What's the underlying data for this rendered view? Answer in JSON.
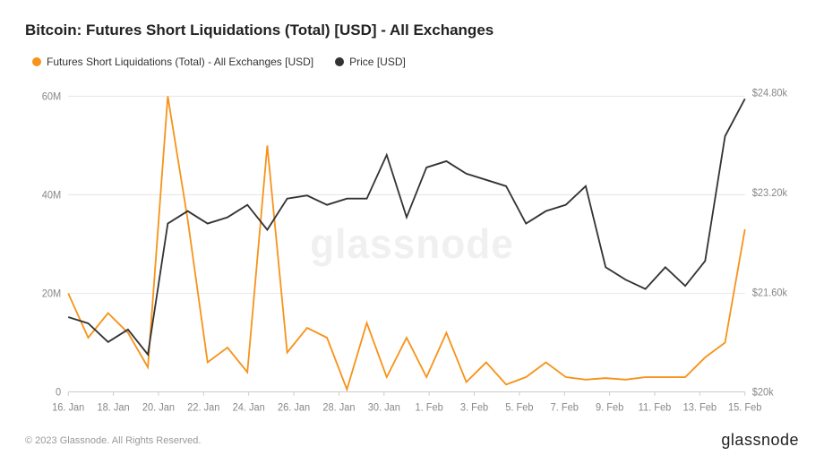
{
  "title": "Bitcoin: Futures Short Liquidations (Total) [USD] - All Exchanges",
  "legend": {
    "series1": {
      "label": "Futures Short Liquidations (Total) - All Exchanges [USD]",
      "color": "#f7931a"
    },
    "series2": {
      "label": "Price [USD]",
      "color": "#333333"
    }
  },
  "watermark": "glassnode",
  "chart": {
    "type": "line-dual-axis",
    "background_color": "#ffffff",
    "grid_color": "#e8e8e8",
    "x_axis": {
      "labels": [
        "16. Jan",
        "18. Jan",
        "20. Jan",
        "22. Jan",
        "24. Jan",
        "26. Jan",
        "28. Jan",
        "30. Jan",
        "1. Feb",
        "3. Feb",
        "5. Feb",
        "7. Feb",
        "9. Feb",
        "11. Feb",
        "13. Feb",
        "15. Feb"
      ],
      "label_color": "#888",
      "label_fontsize": 11
    },
    "y_left": {
      "min": 0,
      "max": 62,
      "ticks": [
        0,
        20,
        40,
        60
      ],
      "tick_labels": [
        "0",
        "20M",
        "40M",
        "60M"
      ],
      "label_color": "#888"
    },
    "y_right": {
      "min": 20,
      "max": 24.9,
      "ticks": [
        20,
        21.6,
        23.2,
        24.8
      ],
      "tick_labels": [
        "$20k",
        "$21.60k",
        "$23.20k",
        "$24.80k"
      ],
      "label_color": "#888"
    },
    "series_liquidations": {
      "color": "#f7931a",
      "line_width": 1.8,
      "data": [
        20,
        11,
        16,
        12,
        5,
        60,
        35,
        6,
        9,
        4,
        50,
        8,
        13,
        11,
        0.5,
        14,
        3,
        11,
        3,
        12,
        2,
        6,
        1.5,
        3,
        6,
        3,
        2.5,
        2.8,
        2.5,
        3,
        3,
        3,
        7,
        10,
        33
      ]
    },
    "series_price": {
      "color": "#333333",
      "line_width": 1.8,
      "data": [
        21.2,
        21.1,
        20.8,
        21.0,
        20.6,
        22.7,
        22.9,
        22.7,
        22.8,
        23.0,
        22.6,
        23.1,
        23.15,
        23.0,
        23.1,
        23.1,
        23.8,
        22.8,
        23.6,
        23.7,
        23.5,
        23.4,
        23.3,
        22.7,
        22.9,
        23.0,
        23.3,
        22.0,
        21.8,
        21.65,
        22.0,
        21.7,
        22.1,
        24.1,
        24.7
      ]
    }
  },
  "footer": {
    "copyright": "© 2023 Glassnode. All Rights Reserved.",
    "brand": "glassnode"
  }
}
